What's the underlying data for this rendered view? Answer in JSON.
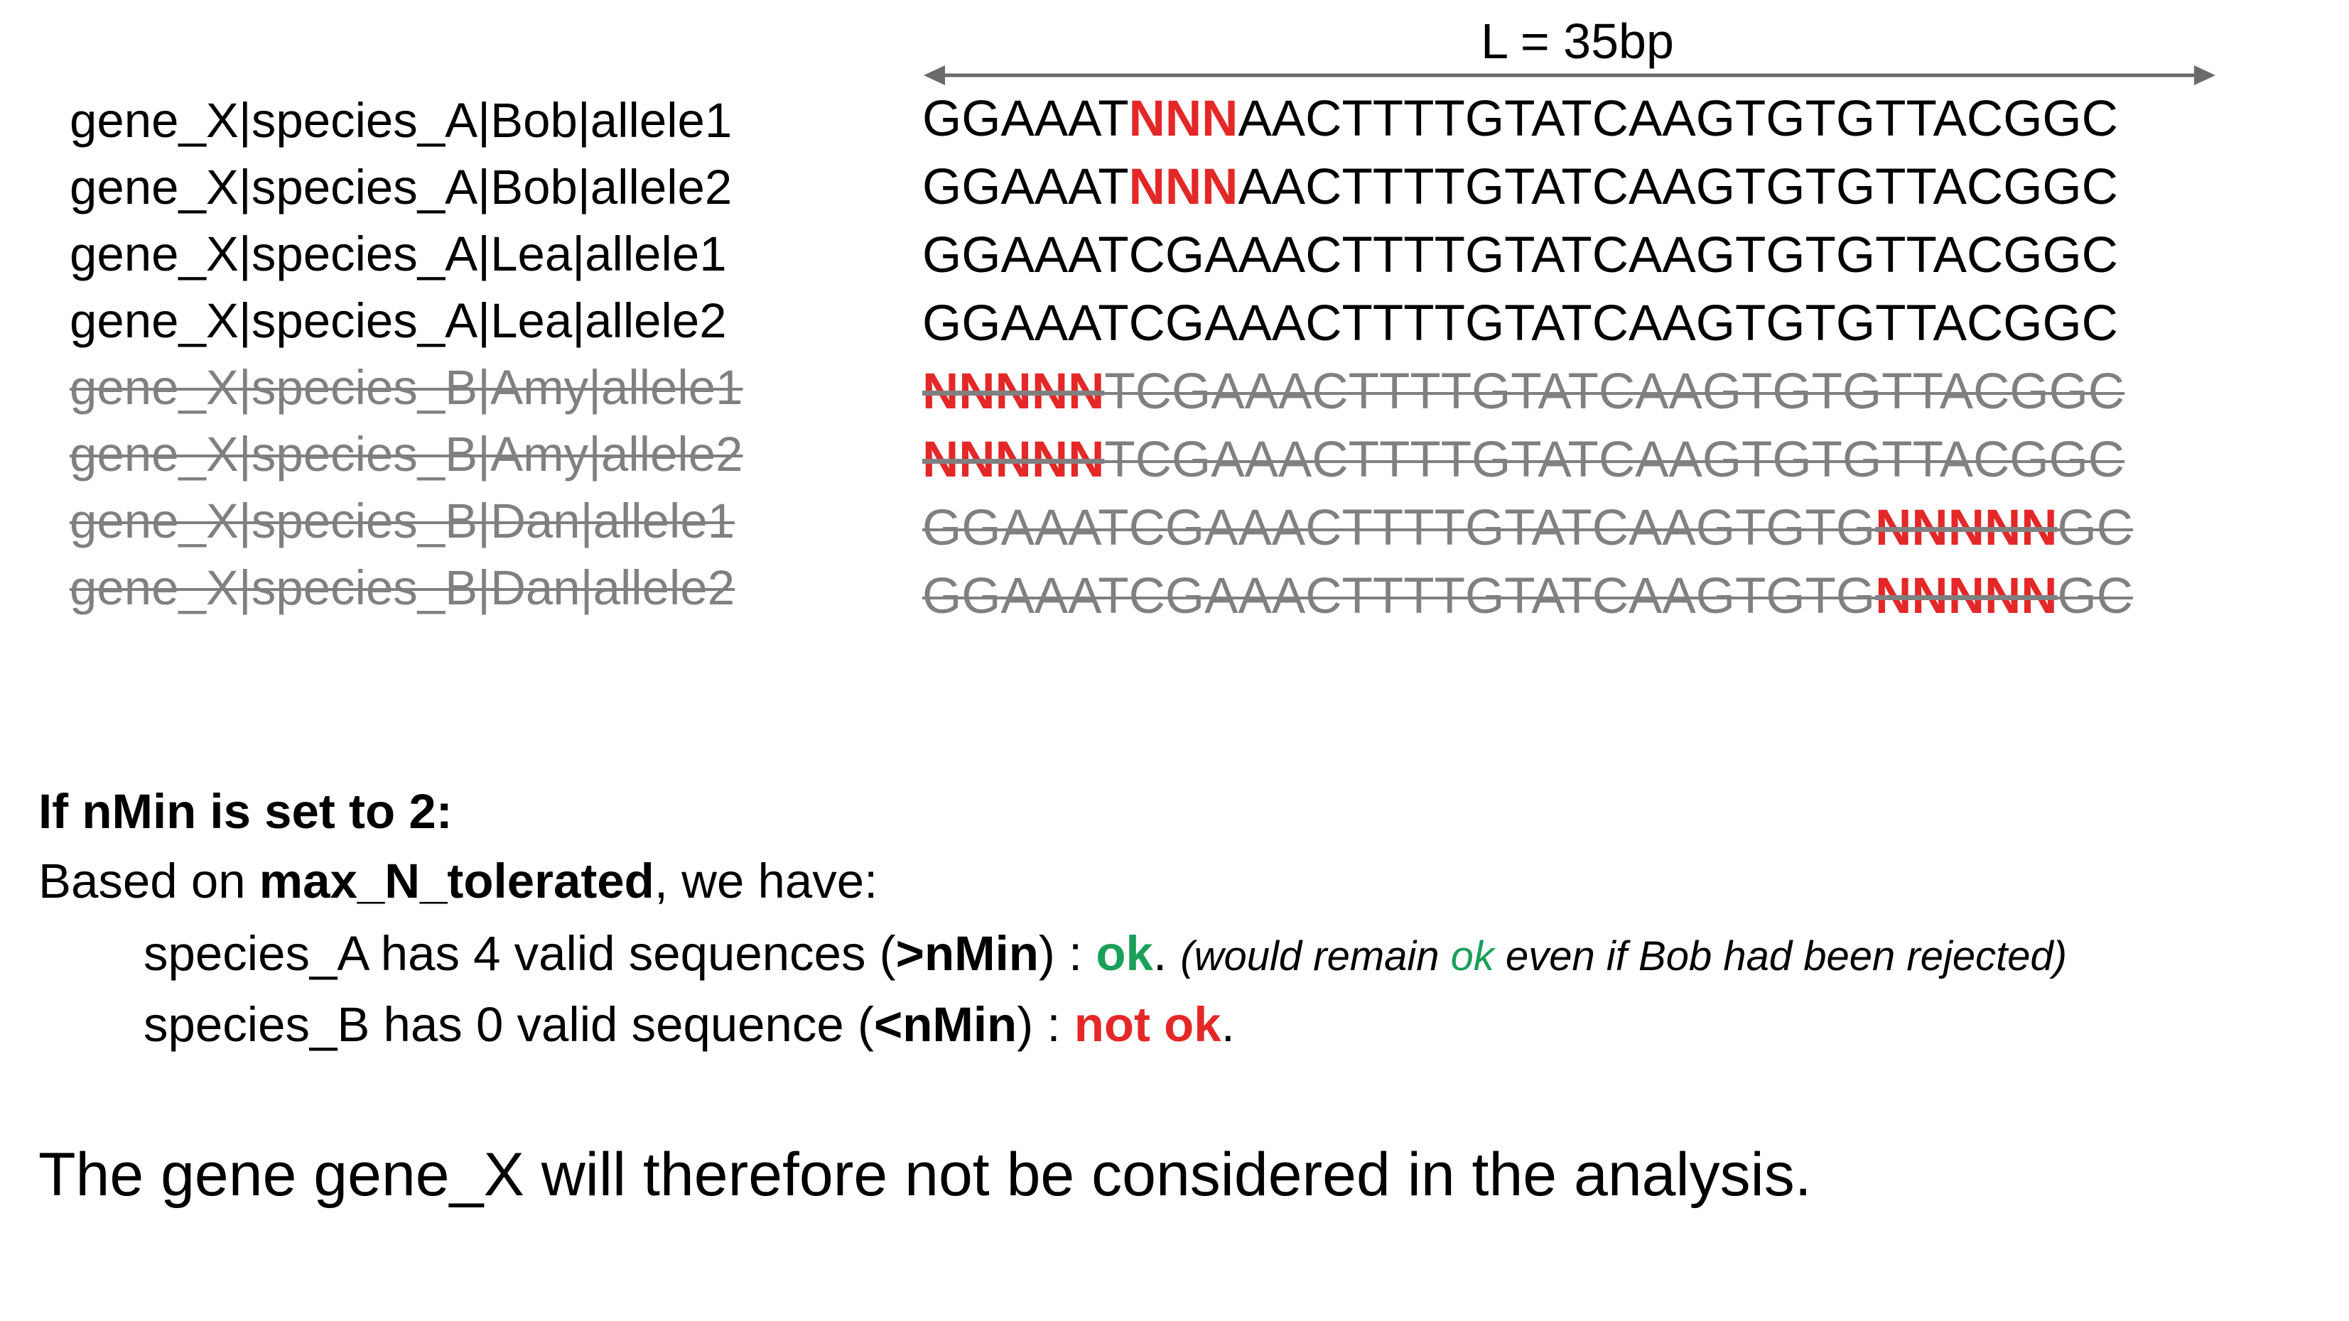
{
  "length_label": "L = 35bp",
  "colors": {
    "valid_text": "#000000",
    "rejected_text": "#808080",
    "ambiguous_base": "#e42727",
    "ok": "#1aa05a",
    "not_ok": "#e42727",
    "arrow": "#6b6b6b"
  },
  "alignment": [
    {
      "name": "gene_X|species_A|Bob|allele1",
      "prefix": "GGAAAT",
      "ns": "NNN",
      "suffix": "AACTTTTGTATCAAGTGTGTTACGGC",
      "rejected": false
    },
    {
      "name": "gene_X|species_A|Bob|allele2",
      "prefix": "GGAAAT",
      "ns": "NNN",
      "suffix": "AACTTTTGTATCAAGTGTGTTACGGC",
      "rejected": false
    },
    {
      "name": "gene_X|species_A|Lea|allele1",
      "prefix": "GGAAATCGAAACTTTTGTATCAAGTGTGTTACGGC",
      "ns": "",
      "suffix": "",
      "rejected": false
    },
    {
      "name": "gene_X|species_A|Lea|allele2",
      "prefix": "GGAAATCGAAACTTTTGTATCAAGTGTGTTACGGC",
      "ns": "",
      "suffix": "",
      "rejected": false
    },
    {
      "name": "gene_X|species_B|Amy|allele1",
      "prefix": "",
      "ns": "NNNNN",
      "suffix": "TCGAAACTTTTGTATCAAGTGTGTTACGGC",
      "rejected": true
    },
    {
      "name": "gene_X|species_B|Amy|allele2",
      "prefix": "",
      "ns": "NNNNN",
      "suffix": "TCGAAACTTTTGTATCAAGTGTGTTACGGC",
      "rejected": true
    },
    {
      "name": "gene_X|species_B|Dan|allele1",
      "prefix": "GGAAATCGAAACTTTTGTATCAAGTGTG",
      "ns": "NNNNN",
      "suffix": "GC",
      "rejected": true
    },
    {
      "name": "gene_X|species_B|Dan|allele2",
      "prefix": "GGAAATCGAAACTTTTGTATCAAGTGTG",
      "ns": "NNNNN",
      "suffix": "GC",
      "rejected": true
    }
  ],
  "explanation": {
    "heading": "If nMin is set to 2:",
    "based_on_pre": "Based on ",
    "based_on_bold": "max_N_tolerated",
    "based_on_post": ", we have:",
    "species_a_text": "species_A has 4 valid sequences (",
    "species_a_cmp": ">nMin",
    "species_a_mid": ") : ",
    "species_a_status": "ok",
    "species_a_dot": ". ",
    "species_a_note_pre": "(would remain ",
    "species_a_note_ok": "ok",
    "species_a_note_post": " even if Bob had been rejected)",
    "species_b_text": "species_B has 0 valid sequence (",
    "species_b_cmp": "<nMin",
    "species_b_mid": ") : ",
    "species_b_status": "not ok",
    "species_b_dot": ".",
    "conclusion": "The gene gene_X will therefore not be considered in the analysis."
  }
}
